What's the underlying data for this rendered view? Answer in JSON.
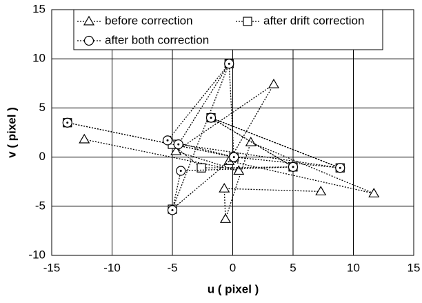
{
  "chart_data": {
    "type": "scatter",
    "x_label": "u ( pixel )",
    "y_label": "v ( pixel )",
    "xlim": [
      -15,
      15
    ],
    "ylim": [
      -10,
      15
    ],
    "xticks": [
      -15,
      -10,
      -5,
      0,
      5,
      10,
      15
    ],
    "yticks": [
      -10,
      -5,
      0,
      5,
      10,
      15
    ],
    "grid": true,
    "legend": "top",
    "series": [
      {
        "name": "before correction",
        "color": "#000000",
        "marker": "triangle",
        "x": [
          -12.3,
          0.5,
          -4.7,
          3.4,
          -0.3,
          11.7,
          1.5,
          -0.6,
          -0.7,
          7.3
        ],
        "y": [
          1.8,
          -1.4,
          0.6,
          7.4,
          -0.4,
          -3.7,
          1.5,
          -6.3,
          -3.2,
          -3.5
        ]
      },
      {
        "name": "after drift correction",
        "color": "#000000",
        "marker": "square",
        "x": [
          -13.7,
          0.1,
          -5.0,
          -0.3,
          0.1,
          8.9,
          -1.8,
          5.0,
          -2.6,
          -5.0
        ],
        "y": [
          3.5,
          0.0,
          -5.3,
          9.5,
          0.0,
          -1.1,
          4.0,
          -1.0,
          -1.1,
          1.3
        ]
      },
      {
        "name": "after both correction",
        "color": "#000000",
        "marker": "circle",
        "x": [
          -13.7,
          0.1,
          -5.4,
          -0.3,
          -4.5,
          8.9,
          -1.8,
          5.0,
          -4.3,
          -5.0
        ],
        "y": [
          3.5,
          0.0,
          1.7,
          9.5,
          1.3,
          -1.1,
          4.0,
          -1.0,
          -1.4,
          -5.4
        ]
      }
    ]
  }
}
